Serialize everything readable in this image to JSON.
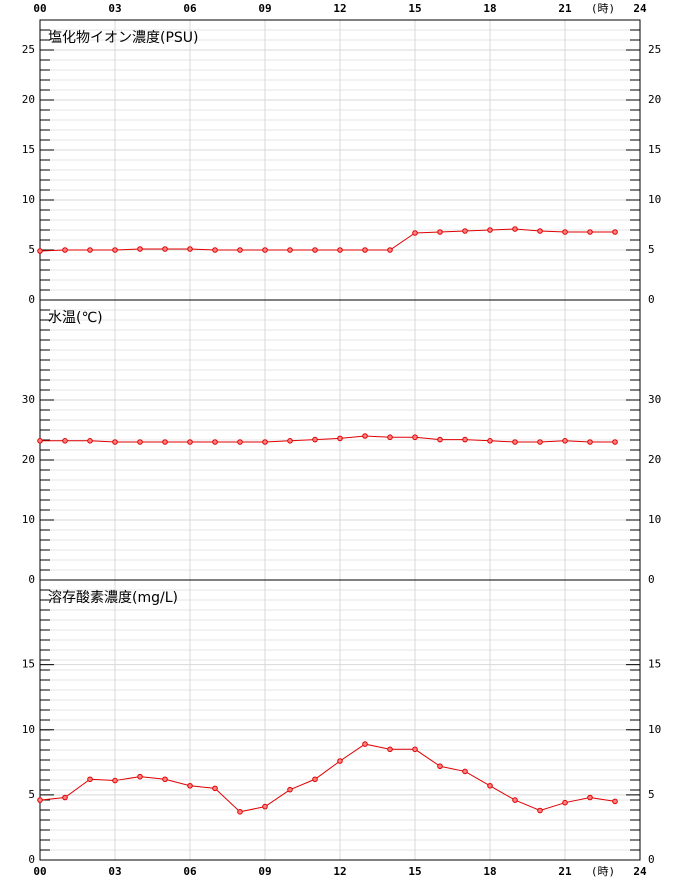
{
  "chart_data": [
    {
      "type": "line",
      "title": "塩化物イオン濃度(PSU)",
      "xlabel": "(時)",
      "x": [
        0,
        1,
        2,
        3,
        4,
        5,
        6,
        7,
        8,
        9,
        10,
        11,
        12,
        13,
        14,
        15,
        16,
        17,
        18,
        19,
        20,
        21,
        22,
        23
      ],
      "series": [
        {
          "color": "#e00000",
          "values": [
            4.9,
            5.0,
            5.0,
            5.0,
            5.1,
            5.1,
            5.1,
            5.0,
            5.0,
            5.0,
            5.0,
            5.0,
            5.0,
            5.0,
            5.0,
            6.7,
            6.8,
            6.9,
            7.0,
            7.1,
            6.9,
            6.8,
            6.8,
            6.8
          ]
        }
      ],
      "xlim": [
        0,
        24
      ],
      "xticks": [
        {
          "value": 0,
          "label": "00"
        },
        {
          "value": 3,
          "label": "03"
        },
        {
          "value": 6,
          "label": "06"
        },
        {
          "value": 9,
          "label": "09"
        },
        12,
        15,
        18,
        21,
        24
      ],
      "ylim": [
        0,
        28
      ],
      "yticks": [
        0,
        5,
        10,
        15,
        20,
        25
      ],
      "grid": true
    },
    {
      "type": "line",
      "title": "水温(℃)",
      "x": [
        0,
        1,
        2,
        3,
        4,
        5,
        6,
        7,
        8,
        9,
        10,
        11,
        12,
        13,
        14,
        15,
        16,
        17,
        18,
        19,
        20,
        21,
        22,
        23
      ],
      "series": [
        {
          "color": "#e00000",
          "values": [
            23.2,
            23.2,
            23.2,
            23.0,
            23.0,
            23.0,
            23.0,
            23.0,
            23.0,
            23.0,
            23.2,
            23.4,
            23.6,
            24.0,
            23.8,
            23.8,
            23.4,
            23.4,
            23.2,
            23.0,
            23.0,
            23.2,
            23.0,
            23.0
          ]
        }
      ],
      "xlim": [
        0,
        24
      ],
      "xticks": [
        {
          "value": 0,
          "label": "00"
        },
        {
          "value": 3,
          "label": "03"
        },
        {
          "value": 6,
          "label": "06"
        },
        {
          "value": 9,
          "label": "09"
        },
        12,
        15,
        18,
        21,
        24
      ],
      "ylim": [
        0,
        46.67
      ],
      "yticks": [
        0,
        10,
        20,
        30
      ],
      "grid": true
    },
    {
      "type": "line",
      "title": "溶存酸素濃度(mg/L)",
      "xlabel": "(時)",
      "x": [
        0,
        1,
        2,
        3,
        4,
        5,
        6,
        7,
        8,
        9,
        10,
        11,
        12,
        13,
        14,
        15,
        16,
        17,
        18,
        19,
        20,
        21,
        22,
        23
      ],
      "series": [
        {
          "color": "#e00000",
          "values": [
            4.6,
            4.8,
            6.2,
            6.1,
            6.4,
            6.2,
            5.7,
            5.5,
            3.7,
            4.1,
            5.4,
            6.2,
            7.6,
            8.9,
            8.5,
            8.5,
            7.2,
            6.8,
            5.7,
            4.6,
            3.8,
            4.4,
            4.8,
            4.5
          ]
        }
      ],
      "xlim": [
        0,
        24
      ],
      "xticks": [
        {
          "value": 0,
          "label": "00"
        },
        {
          "value": 3,
          "label": "03"
        },
        {
          "value": 6,
          "label": "06"
        },
        {
          "value": 9,
          "label": "09"
        },
        12,
        15,
        18,
        21,
        24
      ],
      "ylim": [
        0,
        21.5
      ],
      "yticks": [
        0,
        5,
        10,
        15
      ],
      "grid": true
    }
  ]
}
